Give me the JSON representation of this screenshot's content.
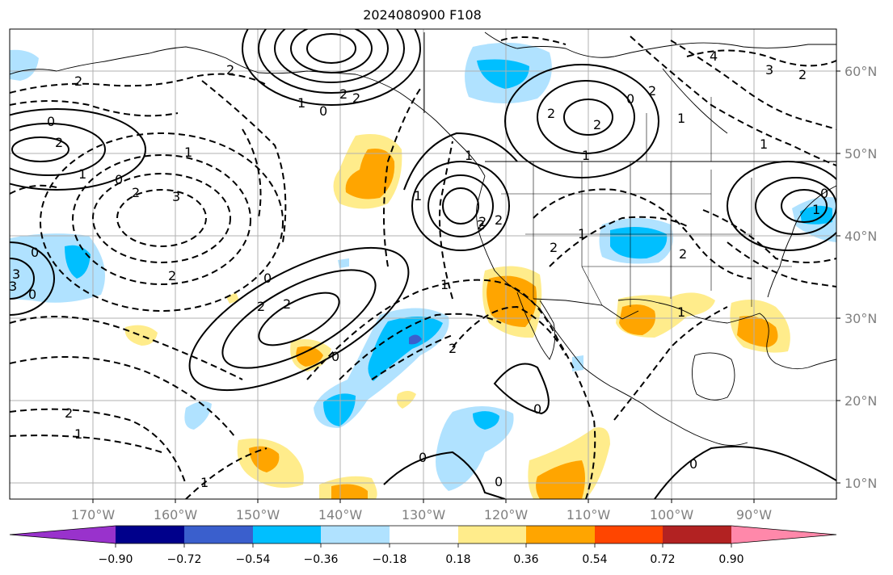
{
  "map": {
    "title": "2024080900 F108",
    "lon_labels": [
      "170°W",
      "160°W",
      "150°W",
      "140°W",
      "130°W",
      "120°W",
      "110°W",
      "100°W",
      "90°W"
    ],
    "lat_labels": [
      "60°N",
      "50°N",
      "40°N",
      "30°N",
      "20°N",
      "10°N"
    ],
    "contour_labels": [
      "2",
      "0",
      "2",
      "1",
      "0",
      "2",
      "3",
      "2",
      "1",
      "0",
      "3",
      "2",
      "2",
      "2",
      "1",
      "0",
      "2",
      "1",
      "1",
      "0",
      "2",
      "3",
      "2",
      "0",
      "1",
      "2",
      "2",
      "1",
      "0",
      "2",
      "2",
      "0",
      "1",
      "1",
      "0",
      "2",
      "0",
      "4",
      "3",
      "2",
      "1",
      "0",
      "1",
      "2",
      "2",
      "0",
      "0",
      "1",
      "2",
      "2",
      "1",
      "1"
    ]
  },
  "colorbar": {
    "ticks": [
      "−0.90",
      "−0.72",
      "−0.54",
      "−0.36",
      "−0.18",
      "0.18",
      "0.36",
      "0.54",
      "0.72",
      "0.90"
    ],
    "colors": [
      "#9932cc",
      "#00008b",
      "#3a5fcd",
      "#00bfff",
      "#b0e2ff",
      "#ffffff",
      "#ffec8b",
      "#ffa500",
      "#ff4500",
      "#b22222",
      "#ff88aa"
    ]
  }
}
